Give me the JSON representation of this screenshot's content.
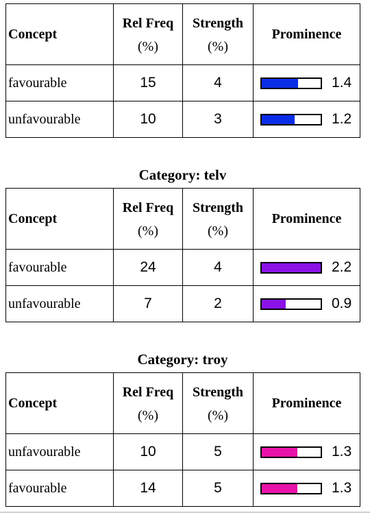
{
  "headers": {
    "concept": "Concept",
    "rel_freq": "Rel Freq",
    "rel_freq_unit": "(%)",
    "strength": "Strength",
    "strength_unit": "(%)",
    "prominence": "Prominence"
  },
  "tables": [
    {
      "category": "",
      "bar_color": "#0a2de8",
      "rows": [
        {
          "concept": "favourable",
          "rel_freq": "15",
          "strength": "4",
          "prominence": "1.4",
          "fill_fraction": 0.62
        },
        {
          "concept": "unfavourable",
          "rel_freq": "10",
          "strength": "3",
          "prominence": "1.2",
          "fill_fraction": 0.56
        }
      ]
    },
    {
      "category": "Category: telv",
      "bar_color": "#8a12e6",
      "rows": [
        {
          "concept": "favourable",
          "rel_freq": "24",
          "strength": "4",
          "prominence": "2.2",
          "fill_fraction": 1.0
        },
        {
          "concept": "unfavourable",
          "rel_freq": "7",
          "strength": "2",
          "prominence": "0.9",
          "fill_fraction": 0.41
        }
      ]
    },
    {
      "category": "Category: troy",
      "bar_color": "#e812a8",
      "rows": [
        {
          "concept": "unfavourable",
          "rel_freq": "10",
          "strength": "5",
          "prominence": "1.3",
          "fill_fraction": 0.6
        },
        {
          "concept": "favourable",
          "rel_freq": "14",
          "strength": "5",
          "prominence": "1.3",
          "fill_fraction": 0.6
        }
      ]
    }
  ]
}
